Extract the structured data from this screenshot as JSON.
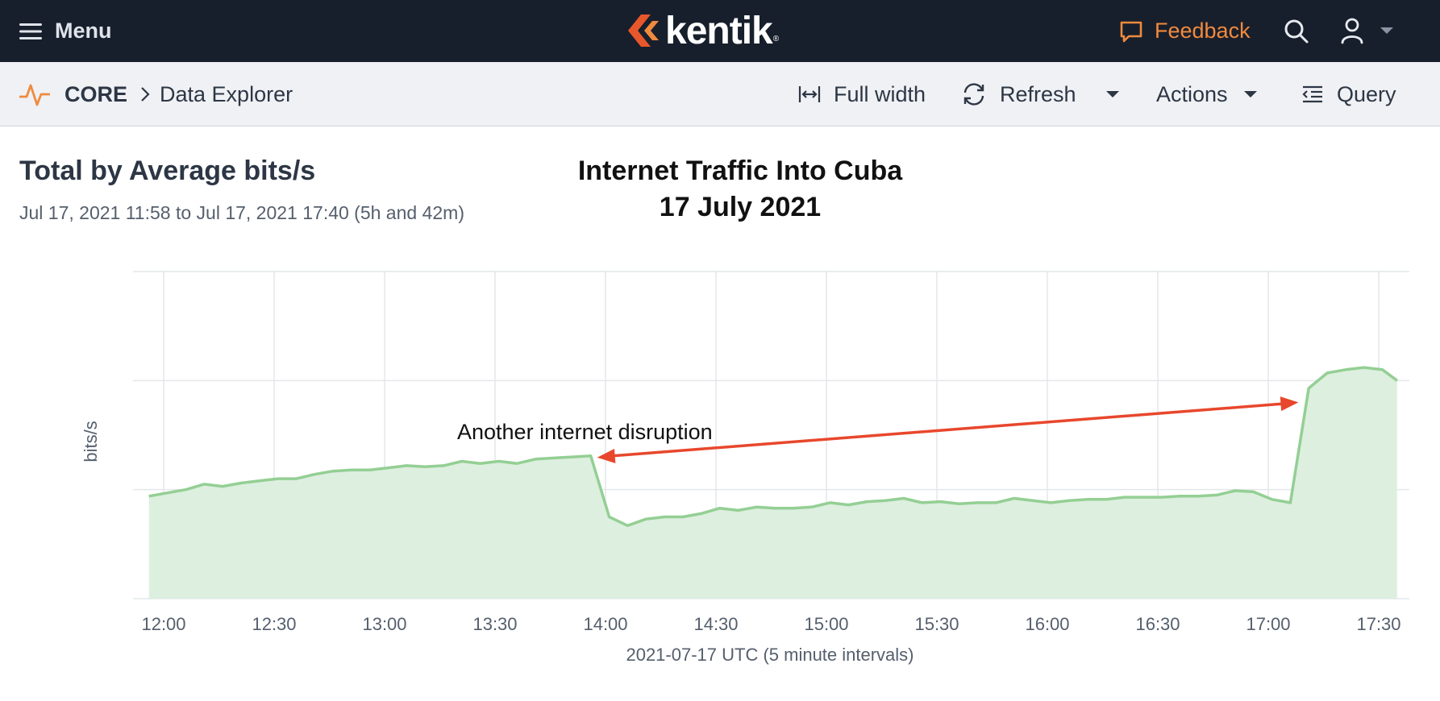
{
  "header": {
    "menu_label": "Menu",
    "logo_text": "kentik",
    "logo_mark": "®",
    "feedback_label": "Feedback",
    "accent_color": "#f08a3e"
  },
  "breadcrumb": {
    "section": "CORE",
    "page": "Data Explorer"
  },
  "toolbar": {
    "full_width_label": "Full width",
    "refresh_label": "Refresh",
    "actions_label": "Actions",
    "query_label": "Query"
  },
  "panel": {
    "title": "Total by Average bits/s",
    "range": "Jul 17, 2021 11:58 to Jul 17, 2021 17:40 (5h and 42m)"
  },
  "overlay": {
    "title_line1": "Internet Traffic Into Cuba",
    "title_line2": "17 July 2021",
    "annotation": "Another internet disruption",
    "arrow_color": "#e8472c"
  },
  "chart_data": {
    "type": "area",
    "xlabel": "2021-07-17 UTC (5 minute intervals)",
    "ylabel": "bits/s",
    "x_ticks": [
      "12:00",
      "12:30",
      "13:00",
      "13:30",
      "14:00",
      "14:30",
      "15:00",
      "15:30",
      "16:00",
      "16:30",
      "17:00",
      "17:30"
    ],
    "x_range": [
      "11:56",
      "17:35"
    ],
    "y_range": [
      0,
      3
    ],
    "y_gridlines": 3,
    "grid": true,
    "legend": "none",
    "line_color": "#94cf94",
    "fill_color": "#ddefdf",
    "series": [
      {
        "x": [
          "11:56",
          "12:01",
          "12:06",
          "12:11",
          "12:16",
          "12:21",
          "12:26",
          "12:31",
          "12:36",
          "12:41",
          "12:46",
          "12:51",
          "12:56",
          "13:01",
          "13:06",
          "13:11",
          "13:16",
          "13:21",
          "13:26",
          "13:31",
          "13:36",
          "13:41",
          "13:46",
          "13:51",
          "13:56",
          "14:01",
          "14:06",
          "14:11",
          "14:16",
          "14:21",
          "14:26",
          "14:31",
          "14:36",
          "14:41",
          "14:46",
          "14:51",
          "14:56",
          "15:01",
          "15:06",
          "15:11",
          "15:16",
          "15:21",
          "15:26",
          "15:31",
          "15:36",
          "15:41",
          "15:46",
          "15:51",
          "15:56",
          "16:01",
          "16:06",
          "16:11",
          "16:16",
          "16:21",
          "16:26",
          "16:31",
          "16:36",
          "16:41",
          "16:46",
          "16:51",
          "16:56",
          "17:01",
          "17:06",
          "17:11",
          "17:16",
          "17:21",
          "17:26",
          "17:31",
          "17:35"
        ],
        "values": [
          0.94,
          0.97,
          1.0,
          1.05,
          1.03,
          1.06,
          1.08,
          1.1,
          1.1,
          1.14,
          1.17,
          1.18,
          1.18,
          1.2,
          1.22,
          1.21,
          1.22,
          1.26,
          1.24,
          1.26,
          1.24,
          1.28,
          1.29,
          1.3,
          1.31,
          0.75,
          0.67,
          0.73,
          0.75,
          0.75,
          0.78,
          0.83,
          0.81,
          0.84,
          0.83,
          0.83,
          0.84,
          0.88,
          0.86,
          0.89,
          0.9,
          0.92,
          0.88,
          0.89,
          0.87,
          0.88,
          0.88,
          0.92,
          0.9,
          0.88,
          0.9,
          0.91,
          0.91,
          0.93,
          0.93,
          0.93,
          0.94,
          0.94,
          0.95,
          0.99,
          0.98,
          0.91,
          0.88,
          1.93,
          2.07,
          2.1,
          2.12,
          2.1,
          2.0
        ]
      }
    ]
  }
}
